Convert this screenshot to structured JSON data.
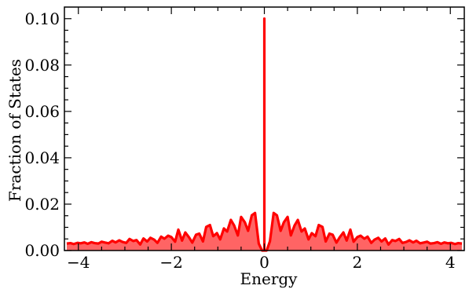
{
  "chart_data": {
    "type": "area",
    "title": "",
    "xlabel": "Energy",
    "ylabel": "Fraction of States",
    "xlim": [
      -4.3,
      4.3
    ],
    "ylim": [
      0.0,
      0.105
    ],
    "x_ticks": [
      -4,
      -2,
      0,
      2,
      4
    ],
    "x_tick_labels": [
      "−4",
      "−2",
      "0",
      "2",
      "4"
    ],
    "y_ticks": [
      0.0,
      0.02,
      0.04,
      0.06,
      0.08,
      0.1
    ],
    "y_tick_labels": [
      "0.00",
      "0.02",
      "0.04",
      "0.06",
      "0.08",
      "0.10"
    ],
    "grid": false,
    "legend": "none",
    "line_color": "#ff0000",
    "fill_color": "#ff6464",
    "series": [
      {
        "x": [
          -4.25,
          -4.17,
          -4.1,
          -4.02,
          -3.95,
          -3.87,
          -3.8,
          -3.72,
          -3.65,
          -3.57,
          -3.5,
          -3.42,
          -3.35,
          -3.27,
          -3.2,
          -3.12,
          -3.05,
          -2.97,
          -2.9,
          -2.82,
          -2.75,
          -2.67,
          -2.6,
          -2.52,
          -2.45,
          -2.37,
          -2.3,
          -2.22,
          -2.15,
          -2.07,
          -2.0,
          -1.92,
          -1.85,
          -1.77,
          -1.7,
          -1.62,
          -1.55,
          -1.47,
          -1.4,
          -1.32,
          -1.25,
          -1.17,
          -1.1,
          -1.02,
          -0.95,
          -0.87,
          -0.8,
          -0.72,
          -0.65,
          -0.57,
          -0.5,
          -0.42,
          -0.35,
          -0.27,
          -0.2,
          -0.12,
          -0.05,
          0.0,
          0.0,
          0.0,
          0.05,
          0.12,
          0.2,
          0.27,
          0.35,
          0.42,
          0.5,
          0.57,
          0.65,
          0.72,
          0.8,
          0.87,
          0.95,
          1.02,
          1.1,
          1.17,
          1.25,
          1.32,
          1.4,
          1.47,
          1.55,
          1.62,
          1.7,
          1.77,
          1.85,
          1.92,
          2.0,
          2.07,
          2.15,
          2.22,
          2.3,
          2.37,
          2.45,
          2.52,
          2.6,
          2.67,
          2.75,
          2.82,
          2.9,
          2.97,
          3.05,
          3.12,
          3.2,
          3.27,
          3.35,
          3.42,
          3.5,
          3.57,
          3.65,
          3.72,
          3.8,
          3.87,
          3.95,
          4.02,
          4.1,
          4.17,
          4.25
        ],
        "y": [
          0.003,
          0.0032,
          0.0028,
          0.0033,
          0.0031,
          0.0035,
          0.0029,
          0.0036,
          0.0032,
          0.003,
          0.0038,
          0.0034,
          0.0031,
          0.0042,
          0.0035,
          0.0044,
          0.0037,
          0.0033,
          0.005,
          0.0041,
          0.0045,
          0.0026,
          0.0052,
          0.0039,
          0.0055,
          0.0047,
          0.0033,
          0.006,
          0.0051,
          0.0064,
          0.0058,
          0.0038,
          0.009,
          0.0043,
          0.0078,
          0.0057,
          0.0034,
          0.0068,
          0.0073,
          0.0039,
          0.0102,
          0.011,
          0.0062,
          0.0075,
          0.0048,
          0.0095,
          0.0082,
          0.0132,
          0.0108,
          0.0065,
          0.0145,
          0.0122,
          0.0085,
          0.0152,
          0.0162,
          0.003,
          0.0,
          0.0,
          0.1,
          0.0,
          0.0,
          0.004,
          0.0162,
          0.0152,
          0.0085,
          0.0122,
          0.0145,
          0.0065,
          0.0108,
          0.0132,
          0.0082,
          0.0095,
          0.0048,
          0.0075,
          0.0062,
          0.011,
          0.0102,
          0.0039,
          0.0073,
          0.0068,
          0.0034,
          0.0057,
          0.0078,
          0.0043,
          0.009,
          0.0038,
          0.0058,
          0.0064,
          0.0051,
          0.006,
          0.0033,
          0.0047,
          0.0055,
          0.0039,
          0.0052,
          0.0026,
          0.0045,
          0.0041,
          0.005,
          0.0033,
          0.0037,
          0.0044,
          0.0035,
          0.0042,
          0.0031,
          0.0034,
          0.0038,
          0.003,
          0.0032,
          0.0036,
          0.0029,
          0.0035,
          0.0031,
          0.0033,
          0.0028,
          0.0032,
          0.003
        ]
      }
    ]
  }
}
